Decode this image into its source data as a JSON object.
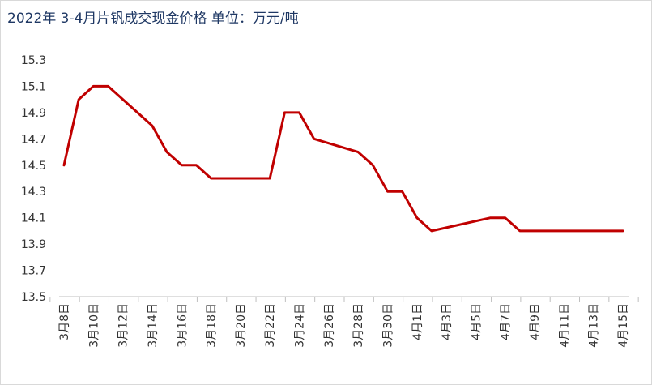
{
  "chart_data": {
    "type": "line",
    "title": "2022年 3-4月片钒成交现金价格 单位：万元/吨",
    "xlabel": "",
    "ylabel": "",
    "ylim": [
      13.5,
      15.3
    ],
    "yticks": [
      "15.3",
      "15.1",
      "14.9",
      "14.7",
      "14.5",
      "14.3",
      "14.1",
      "13.9",
      "13.7",
      "13.5"
    ],
    "grid": false,
    "legend": "none",
    "x_tick_labels": [
      "3月8日",
      "3月10日",
      "3月12日",
      "3月14日",
      "3月16日",
      "3月18日",
      "3月20日",
      "3月22日",
      "3月24日",
      "3月26日",
      "3月28日",
      "3月30日",
      "4月1日",
      "4月3日",
      "4月5日",
      "4月7日",
      "4月9日",
      "4月11日",
      "4月13日",
      "4月15日"
    ],
    "x_tick_day_offsets": [
      0,
      2,
      4,
      6,
      8,
      10,
      12,
      14,
      16,
      18,
      20,
      22,
      24,
      26,
      28,
      30,
      32,
      34,
      36,
      38
    ],
    "x_range_days": [
      0,
      38
    ],
    "line_color": "#c00000",
    "series": [
      {
        "name": "",
        "x": [
          "3月8日",
          "3月9日",
          "3月10日",
          "3月11日",
          "3月14日",
          "3月15日",
          "3月16日",
          "3月17日",
          "3月18日",
          "3月21日",
          "3月22日",
          "3月23日",
          "3月24日",
          "3月25日",
          "3月28日",
          "3月29日",
          "3月30日",
          "3月31日",
          "4月1日",
          "4月2日",
          "4月6日",
          "4月7日",
          "4月8日",
          "4月15日"
        ],
        "x_days": [
          0,
          1,
          2,
          3,
          6,
          7,
          8,
          9,
          10,
          13,
          14,
          15,
          16,
          17,
          20,
          21,
          22,
          23,
          24,
          25,
          29,
          30,
          31,
          38
        ],
        "values": [
          14.5,
          15.0,
          15.1,
          15.1,
          14.8,
          14.6,
          14.5,
          14.5,
          14.4,
          14.4,
          14.4,
          14.9,
          14.9,
          14.7,
          14.6,
          14.5,
          14.3,
          14.3,
          14.1,
          14.0,
          14.1,
          14.1,
          14.0,
          14.0
        ]
      }
    ]
  }
}
